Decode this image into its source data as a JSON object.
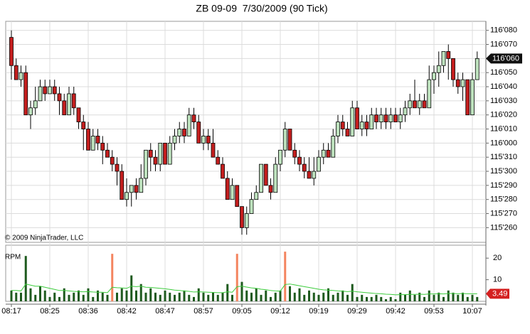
{
  "chart_data": [
    {
      "type": "candlestick",
      "title": "ZB 09-09  7/30/2009 (90 Tick)",
      "annotation": "© 2009 NinjaTrader, LLC",
      "up_color": "#bfe3bf",
      "down_color": "#c41e1e",
      "grid": true,
      "ylim": [
        115.78,
        116.27
      ],
      "yticks": [
        {
          "value": 116.25,
          "label": "116'080"
        },
        {
          "value": 116.21875,
          "label": "116'070"
        },
        {
          "value": 116.1875,
          "label": "116'060"
        },
        {
          "value": 116.15625,
          "label": "116'050"
        },
        {
          "value": 116.125,
          "label": "116'040"
        },
        {
          "value": 116.09375,
          "label": "116'030"
        },
        {
          "value": 116.0625,
          "label": "116'020"
        },
        {
          "value": 116.03125,
          "label": "116'010"
        },
        {
          "value": 116.0,
          "label": "116'000"
        },
        {
          "value": 115.96875,
          "label": "115'310"
        },
        {
          "value": 115.9375,
          "label": "115'300"
        },
        {
          "value": 115.90625,
          "label": "115'290"
        },
        {
          "value": 115.875,
          "label": "115'280"
        },
        {
          "value": 115.84375,
          "label": "115'270"
        },
        {
          "value": 115.8125,
          "label": "115'260"
        }
      ],
      "last_price": {
        "value": 116.1875,
        "label": "116'060"
      },
      "open": [
        116.234375,
        116.171875,
        116.140625,
        116.15625,
        116.0625,
        116.078125,
        116.09375,
        116.125,
        116.109375,
        116.125,
        116.109375,
        116.09375,
        116.0625,
        116.109375,
        116.078125,
        116.046875,
        116.03125,
        115.984375,
        116.015625,
        116,
        115.984375,
        115.96875,
        115.953125,
        115.9375,
        115.875,
        115.890625,
        115.90625,
        115.890625,
        115.921875,
        115.984375,
        115.96875,
        115.953125,
        116,
        115.953125,
        116,
        116.015625,
        116.03125,
        116.015625,
        116.0625,
        116.046875,
        116,
        116.015625,
        116,
        115.96875,
        115.953125,
        115.921875,
        115.875,
        115.90625,
        115.859375,
        115.8125,
        115.84375,
        115.875,
        115.890625,
        115.953125,
        115.90625,
        115.890625,
        115.953125,
        115.984375,
        116.03125,
        115.984375,
        115.96875,
        115.953125,
        115.9375,
        115.921875,
        115.9375,
        115.96875,
        115.984375,
        115.96875,
        116.015625,
        116.046875,
        116.03125,
        116.015625,
        116.078125,
        116.03125,
        116.046875,
        116.03125,
        116.0625,
        116.046875,
        116.0625,
        116.046875,
        116.0625,
        116.046875,
        116.0625,
        116.078125,
        116.09375,
        116.078125,
        116.09375,
        116.078125,
        116.140625,
        116.15625,
        116.171875,
        116.203125,
        116.1875,
        116.140625,
        116.125,
        116.140625,
        116.0625,
        116.140625
      ],
      "high": [
        116.25,
        116.1875,
        116.171875,
        116.171875,
        116.09375,
        116.125,
        116.140625,
        116.140625,
        116.140625,
        116.140625,
        116.125,
        116.109375,
        116.125,
        116.125,
        116.078125,
        116.0625,
        116.046875,
        116.03125,
        116.03125,
        116.015625,
        116,
        115.984375,
        115.96875,
        115.953125,
        115.921875,
        115.90625,
        115.921875,
        115.953125,
        115.984375,
        116,
        115.984375,
        116,
        116,
        116.015625,
        116.03125,
        116.046875,
        116.046875,
        116.078125,
        116.078125,
        116.0625,
        116.03125,
        116.03125,
        116.03125,
        115.984375,
        115.96875,
        115.9375,
        115.921875,
        115.90625,
        115.859375,
        115.859375,
        115.890625,
        115.90625,
        115.953125,
        115.953125,
        115.921875,
        115.96875,
        115.984375,
        116.046875,
        116.03125,
        116,
        115.984375,
        115.96875,
        115.96875,
        115.96875,
        115.984375,
        116,
        116,
        116.03125,
        116.0625,
        116.0625,
        116.046875,
        116.09375,
        116.09375,
        116.0625,
        116.0625,
        116.078125,
        116.078125,
        116.078125,
        116.078125,
        116.078125,
        116.078125,
        116.078125,
        116.09375,
        116.109375,
        116.140625,
        116.109375,
        116.109375,
        116.171875,
        116.171875,
        116.203125,
        116.203125,
        116.21875,
        116.1875,
        116.15625,
        116.15625,
        116.140625,
        116.15625,
        116.203125
      ],
      "low": [
        116.140625,
        116.140625,
        116.125,
        116.0625,
        116.03125,
        116.0625,
        116.09375,
        116.09375,
        116.109375,
        116.09375,
        116.0625,
        116.0625,
        116.0625,
        116.0625,
        116.03125,
        115.984375,
        115.984375,
        115.984375,
        115.984375,
        115.953125,
        115.96875,
        115.9375,
        115.90625,
        115.875,
        115.859375,
        115.859375,
        115.875,
        115.890625,
        115.90625,
        115.9375,
        115.9375,
        115.9375,
        115.953125,
        115.953125,
        115.984375,
        116,
        116,
        116.015625,
        116.03125,
        116,
        115.984375,
        115.984375,
        115.96875,
        115.953125,
        115.921875,
        115.875,
        115.875,
        115.859375,
        115.796875,
        115.796875,
        115.84375,
        115.875,
        115.890625,
        115.90625,
        115.875,
        115.890625,
        115.9375,
        115.96875,
        115.984375,
        115.953125,
        115.9375,
        115.921875,
        115.921875,
        115.90625,
        115.9375,
        115.953125,
        115.96875,
        115.96875,
        116,
        116.015625,
        116.015625,
        116.015625,
        116.03125,
        116.015625,
        116.015625,
        116.03125,
        116.03125,
        116.03125,
        116.03125,
        116.03125,
        116.046875,
        116.03125,
        116.046875,
        116.0625,
        116.078125,
        116.0625,
        116.078125,
        116.078125,
        116.109375,
        116.125,
        116.15625,
        116.140625,
        116.125,
        116.109375,
        116.09375,
        116.0625,
        116.0625,
        116.140625
      ],
      "close": [
        116.171875,
        116.140625,
        116.15625,
        116.0625,
        116.078125,
        116.09375,
        116.125,
        116.109375,
        116.125,
        116.109375,
        116.09375,
        116.0625,
        116.109375,
        116.078125,
        116.046875,
        116.03125,
        115.984375,
        116.015625,
        116,
        115.984375,
        115.96875,
        115.953125,
        115.9375,
        115.875,
        115.890625,
        115.90625,
        115.890625,
        115.921875,
        115.984375,
        115.96875,
        115.953125,
        116,
        115.953125,
        116,
        116.015625,
        116.03125,
        116.015625,
        116.0625,
        116.046875,
        116,
        116.015625,
        116,
        115.96875,
        115.953125,
        115.921875,
        115.875,
        115.90625,
        115.859375,
        115.8125,
        115.84375,
        115.875,
        115.890625,
        115.953125,
        115.90625,
        115.890625,
        115.953125,
        115.984375,
        116.03125,
        115.984375,
        115.96875,
        115.953125,
        115.9375,
        115.921875,
        115.9375,
        115.96875,
        115.984375,
        115.96875,
        116.015625,
        116.046875,
        116.03125,
        116.015625,
        116.078125,
        116.03125,
        116.046875,
        116.03125,
        116.0625,
        116.046875,
        116.0625,
        116.046875,
        116.0625,
        116.046875,
        116.0625,
        116.078125,
        116.09375,
        116.078125,
        116.09375,
        116.078125,
        116.140625,
        116.15625,
        116.171875,
        116.203125,
        116.1875,
        116.140625,
        116.125,
        116.140625,
        116.0625,
        116.140625,
        116.1875
      ]
    },
    {
      "type": "bar",
      "label": "RPM",
      "ylim": [
        0,
        26
      ],
      "yticks": [
        10,
        20
      ],
      "categories": [
        "08:17",
        null,
        null,
        null,
        null,
        null,
        null,
        null,
        "08:25",
        null,
        null,
        null,
        null,
        null,
        null,
        null,
        "08:36",
        null,
        null,
        null,
        null,
        null,
        null,
        null,
        "08:42",
        null,
        null,
        null,
        null,
        null,
        null,
        null,
        "08:47",
        null,
        null,
        null,
        null,
        null,
        null,
        null,
        "08:57",
        null,
        null,
        null,
        null,
        null,
        null,
        null,
        "09:05",
        null,
        null,
        null,
        null,
        null,
        null,
        null,
        "09:12",
        null,
        null,
        null,
        null,
        null,
        null,
        null,
        "09:19",
        null,
        null,
        null,
        null,
        null,
        null,
        null,
        "09:29",
        null,
        null,
        null,
        null,
        null,
        null,
        null,
        "09:42",
        null,
        null,
        null,
        null,
        null,
        null,
        null,
        "09:53",
        null,
        null,
        null,
        null,
        null,
        null,
        null,
        "10:07",
        null
      ],
      "series": [
        {
          "color": "#1e5a1e",
          "values": [
            5,
            4,
            4,
            21,
            6,
            3,
            7,
            5,
            2,
            4,
            2,
            6,
            3,
            4,
            5,
            3,
            6,
            2,
            5,
            4,
            3,
            null,
            4,
            6,
            5,
            12,
            5,
            8,
            4,
            6,
            4,
            3,
            5,
            4,
            3,
            4,
            5,
            3,
            2,
            6,
            4,
            3,
            4,
            3,
            4,
            8,
            3,
            null,
            9,
            5,
            4,
            6,
            3,
            5,
            2,
            4,
            5,
            null,
            7,
            4,
            6,
            3,
            5,
            4,
            3,
            4,
            6,
            3,
            4,
            5,
            3,
            8,
            2,
            3,
            2,
            2,
            3,
            2,
            1,
            2,
            1,
            4,
            3,
            5,
            3,
            4,
            2,
            5,
            3,
            4,
            2,
            5,
            4,
            3,
            4,
            2,
            3,
            2
          ]
        },
        {
          "color": "#f4845f",
          "values": [
            null,
            null,
            null,
            null,
            null,
            null,
            null,
            null,
            null,
            null,
            null,
            null,
            null,
            null,
            null,
            null,
            null,
            null,
            null,
            null,
            null,
            22,
            null,
            null,
            null,
            null,
            null,
            null,
            null,
            null,
            null,
            null,
            null,
            null,
            null,
            null,
            null,
            null,
            null,
            null,
            null,
            null,
            null,
            null,
            null,
            null,
            null,
            22,
            null,
            null,
            null,
            null,
            null,
            null,
            null,
            null,
            null,
            23,
            null,
            null,
            null,
            null,
            null,
            null,
            null,
            null,
            null,
            null,
            null,
            null,
            null,
            null,
            null,
            null,
            null,
            null,
            null,
            null,
            null,
            null,
            null,
            null,
            null,
            null,
            null,
            null,
            null,
            null,
            null,
            null,
            null,
            null,
            null,
            null,
            null,
            null,
            null,
            null
          ]
        }
      ],
      "line": {
        "color": "#3ccc3c",
        "values": [
          5,
          5,
          4.8,
          8,
          7.5,
          7,
          7,
          6.5,
          6,
          5.5,
          5,
          5,
          4.8,
          4.6,
          4.5,
          4.4,
          4.5,
          4.3,
          4.2,
          4.2,
          4,
          6.5,
          6.3,
          6.2,
          6,
          7,
          6.8,
          7,
          6.5,
          6.4,
          6.2,
          6,
          5.8,
          5.5,
          5.2,
          5,
          4.8,
          4.6,
          4.3,
          4.4,
          4.3,
          4.2,
          4.1,
          4,
          4,
          4.4,
          4.2,
          6.8,
          7,
          6.6,
          6.2,
          6,
          5.6,
          5.4,
          5,
          4.8,
          4.7,
          7.8,
          8,
          7.6,
          7.2,
          6.8,
          6.4,
          6,
          5.6,
          5.3,
          5.2,
          5,
          4.8,
          4.7,
          4.5,
          4.7,
          4.4,
          4.2,
          4,
          3.8,
          3.6,
          3.5,
          3.3,
          3.2,
          3,
          3.1,
          3.1,
          3.2,
          3.2,
          3.3,
          3.2,
          3.4,
          3.4,
          3.5,
          3.4,
          3.6,
          3.6,
          3.5,
          3.6,
          3.5,
          3.5,
          3.49
        ]
      },
      "last_color": "#d42020"
    }
  ]
}
